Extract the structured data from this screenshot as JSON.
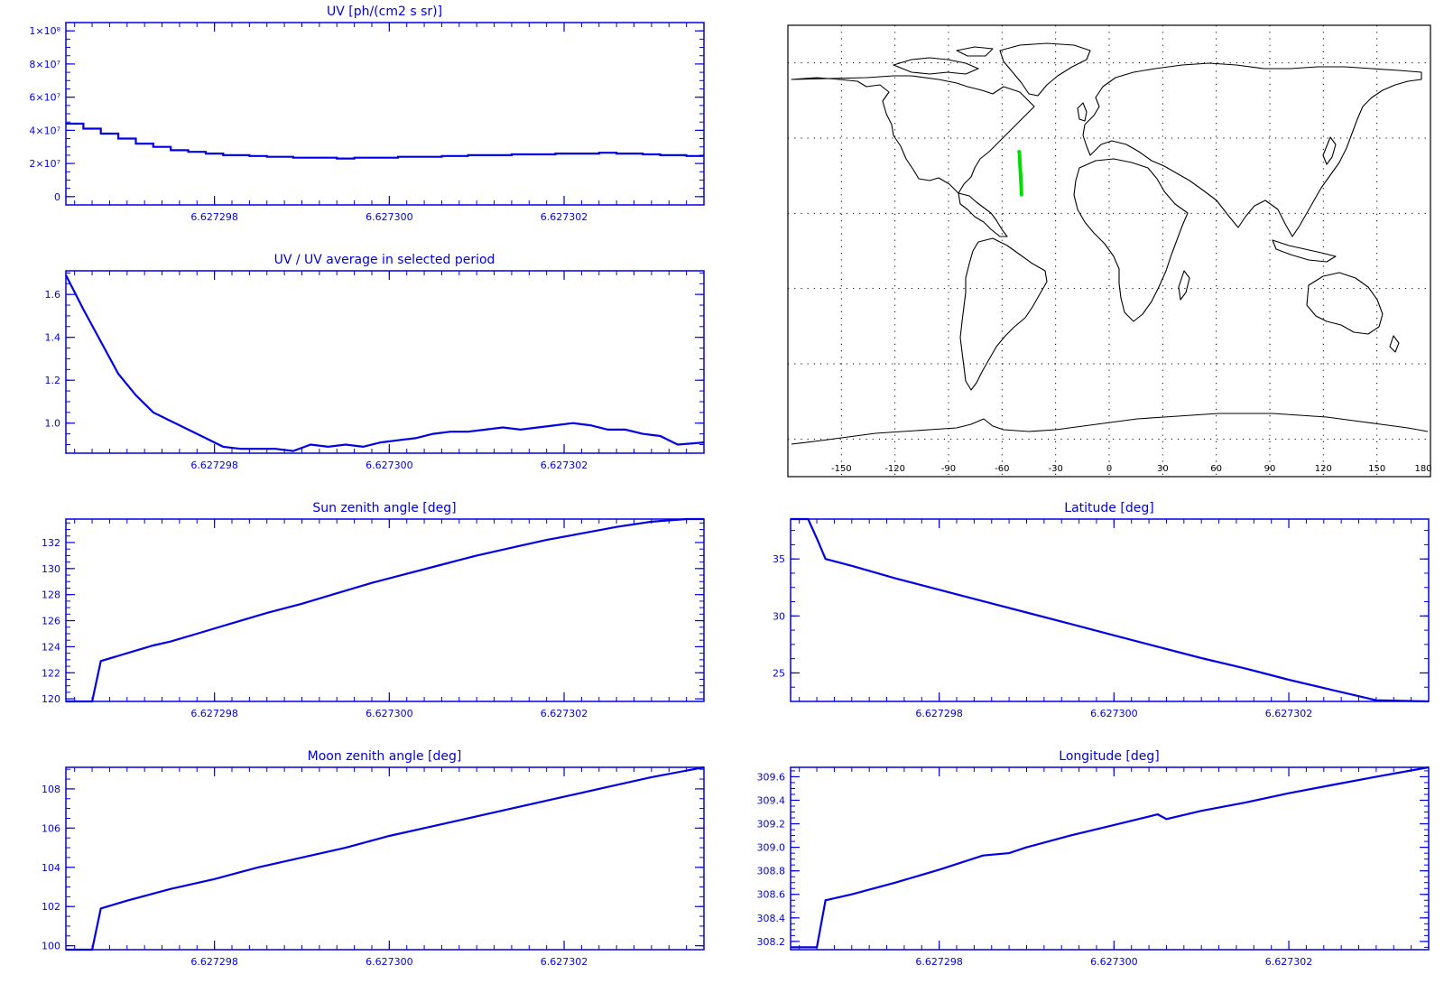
{
  "colors": {
    "plot": "#0000e6",
    "map_ink": "#000000",
    "track": "#00dd00",
    "background": "#ffffff"
  },
  "chart_data": [
    {
      "id": "uv",
      "type": "line",
      "step": true,
      "title": "UV [ph/(cm2 s sr)]",
      "xlim": [
        6.6272963,
        6.6273036
      ],
      "ylim": [
        -5000000,
        105000000
      ],
      "yticks": [
        0,
        20000000,
        40000000,
        60000000,
        80000000,
        100000000
      ],
      "ytick_labels": [
        "0",
        "2×10⁷",
        "4×10⁷",
        "6×10⁷",
        "8×10⁷",
        "1×10⁸"
      ],
      "xticks": [
        6.627298,
        6.6273,
        6.627302
      ],
      "xtick_labels": [
        "6.627298",
        "6.627300",
        "6.627302"
      ],
      "x": [
        6.6272963,
        6.6272965,
        6.6272967,
        6.6272969,
        6.6272971,
        6.6272973,
        6.6272975,
        6.6272977,
        6.6272979,
        6.6272981,
        6.6272984,
        6.6272986,
        6.6272989,
        6.6272991,
        6.6272994,
        6.6272996,
        6.6272999,
        6.6273001,
        6.6273004,
        6.6273006,
        6.6273009,
        6.6273011,
        6.6273014,
        6.6273016,
        6.6273019,
        6.6273021,
        6.6273024,
        6.6273026,
        6.6273029,
        6.6273031,
        6.6273034
      ],
      "y": [
        44000000,
        41000000,
        38000000,
        35000000,
        32000000,
        30000000,
        28000000,
        27000000,
        26000000,
        25000000,
        24500000,
        24000000,
        23500000,
        23500000,
        23000000,
        23500000,
        23500000,
        24000000,
        24000000,
        24500000,
        25000000,
        25000000,
        25500000,
        25500000,
        26000000,
        26000000,
        26500000,
        26000000,
        25500000,
        25000000,
        24500000
      ]
    },
    {
      "id": "uv_ratio",
      "type": "line",
      "title": "UV / UV average in selected period",
      "xlim": [
        6.6272963,
        6.6273036
      ],
      "ylim": [
        0.86,
        1.71
      ],
      "yticks": [
        1.0,
        1.2,
        1.4,
        1.6
      ],
      "ytick_labels": [
        "1.0",
        "1.2",
        "1.4",
        "1.6"
      ],
      "xticks": [
        6.627298,
        6.6273,
        6.627302
      ],
      "xtick_labels": [
        "6.627298",
        "6.627300",
        "6.627302"
      ],
      "x": [
        6.6272963,
        6.6272965,
        6.6272967,
        6.6272969,
        6.6272971,
        6.6272973,
        6.6272975,
        6.6272977,
        6.6272979,
        6.6272981,
        6.6272983,
        6.6272985,
        6.6272987,
        6.6272989,
        6.6272991,
        6.6272993,
        6.6272995,
        6.6272997,
        6.6272999,
        6.6273001,
        6.6273003,
        6.6273005,
        6.6273007,
        6.6273009,
        6.6273011,
        6.6273013,
        6.6273015,
        6.6273017,
        6.6273019,
        6.6273021,
        6.6273023,
        6.6273025,
        6.6273027,
        6.6273029,
        6.6273031,
        6.6273033,
        6.6273036
      ],
      "y": [
        1.69,
        1.53,
        1.38,
        1.23,
        1.13,
        1.05,
        1.01,
        0.97,
        0.93,
        0.89,
        0.88,
        0.88,
        0.88,
        0.87,
        0.9,
        0.89,
        0.9,
        0.89,
        0.91,
        0.92,
        0.93,
        0.95,
        0.96,
        0.96,
        0.97,
        0.98,
        0.97,
        0.98,
        0.99,
        1.0,
        0.99,
        0.97,
        0.97,
        0.95,
        0.94,
        0.9,
        0.91
      ]
    },
    {
      "id": "sun_zenith",
      "type": "line",
      "title": "Sun zenith angle [deg]",
      "xlim": [
        6.6272963,
        6.6273036
      ],
      "ylim": [
        119.8,
        133.8
      ],
      "yticks": [
        120,
        122,
        124,
        126,
        128,
        130,
        132
      ],
      "ytick_labels": [
        "120",
        "122",
        "124",
        "126",
        "128",
        "130",
        "132"
      ],
      "xticks": [
        6.627298,
        6.6273,
        6.627302
      ],
      "xtick_labels": [
        "6.627298",
        "6.627300",
        "6.627302"
      ],
      "x": [
        6.6272963,
        6.6272966,
        6.6272967,
        6.6272969,
        6.6272971,
        6.6272973,
        6.6272975,
        6.6272978,
        6.6272982,
        6.6272986,
        6.627299,
        6.6272994,
        6.6272998,
        6.6273002,
        6.6273006,
        6.627301,
        6.6273014,
        6.6273018,
        6.6273022,
        6.6273026,
        6.627303,
        6.6273034,
        6.6273036
      ],
      "y": [
        119.8,
        119.8,
        122.9,
        123.3,
        123.7,
        124.1,
        124.4,
        125.0,
        125.8,
        126.6,
        127.3,
        128.1,
        128.9,
        129.6,
        130.3,
        131.0,
        131.6,
        132.2,
        132.7,
        133.2,
        133.6,
        133.8,
        133.8
      ]
    },
    {
      "id": "latitude",
      "type": "line",
      "title": "Latitude [deg]",
      "xlim": [
        6.6272963,
        6.6273036
      ],
      "ylim": [
        22.5,
        38.5
      ],
      "yticks": [
        25,
        30,
        35
      ],
      "ytick_labels": [
        "25",
        "30",
        "35"
      ],
      "xticks": [
        6.627298,
        6.6273,
        6.627302
      ],
      "xtick_labels": [
        "6.627298",
        "6.627300",
        "6.627302"
      ],
      "x": [
        6.6272963,
        6.6272965,
        6.6272966,
        6.6272967,
        6.627297,
        6.6272975,
        6.627298,
        6.6272985,
        6.627299,
        6.6272995,
        6.6273,
        6.6273005,
        6.627301,
        6.6273015,
        6.627302,
        6.6273025,
        6.627303,
        6.6273036
      ],
      "y": [
        38.5,
        38.5,
        36.8,
        35.0,
        34.4,
        33.3,
        32.3,
        31.3,
        30.3,
        29.3,
        28.3,
        27.3,
        26.3,
        25.4,
        24.4,
        23.5,
        22.6,
        22.5
      ]
    },
    {
      "id": "moon_zenith",
      "type": "line",
      "title": "Moon zenith angle [deg]",
      "xlim": [
        6.6272963,
        6.6273036
      ],
      "ylim": [
        99.8,
        109.1
      ],
      "yticks": [
        100,
        102,
        104,
        106,
        108
      ],
      "ytick_labels": [
        "100",
        "102",
        "104",
        "106",
        "108"
      ],
      "xticks": [
        6.627298,
        6.6273,
        6.627302
      ],
      "xtick_labels": [
        "6.627298",
        "6.627300",
        "6.627302"
      ],
      "x": [
        6.6272963,
        6.6272966,
        6.6272967,
        6.627297,
        6.6272975,
        6.627298,
        6.6272985,
        6.627299,
        6.6272995,
        6.6273,
        6.6273005,
        6.627301,
        6.6273015,
        6.627302,
        6.6273025,
        6.627303,
        6.6273036
      ],
      "y": [
        99.8,
        99.8,
        101.9,
        102.3,
        102.9,
        103.4,
        104.0,
        104.5,
        105.0,
        105.6,
        106.1,
        106.6,
        107.1,
        107.6,
        108.1,
        108.6,
        109.1
      ]
    },
    {
      "id": "longitude",
      "type": "line",
      "title": "Longitude [deg]",
      "xlim": [
        6.6272963,
        6.6273036
      ],
      "ylim": [
        308.13,
        309.68
      ],
      "yticks": [
        308.2,
        308.4,
        308.6,
        308.8,
        309.0,
        309.2,
        309.4,
        309.6
      ],
      "ytick_labels": [
        "308.2",
        "308.4",
        "308.6",
        "308.8",
        "309.0",
        "309.2",
        "309.4",
        "309.6"
      ],
      "xticks": [
        6.627298,
        6.6273,
        6.627302
      ],
      "xtick_labels": [
        "6.627298",
        "6.627300",
        "6.627302"
      ],
      "x": [
        6.6272963,
        6.6272966,
        6.6272967,
        6.627297,
        6.6272975,
        6.627298,
        6.6272985,
        6.6272988,
        6.627299,
        6.6272995,
        6.6273,
        6.6273005,
        6.6273006,
        6.627301,
        6.6273015,
        6.627302,
        6.6273025,
        6.627303,
        6.6273036
      ],
      "y": [
        308.15,
        308.15,
        308.55,
        308.6,
        308.7,
        308.81,
        308.93,
        308.95,
        309.0,
        309.1,
        309.19,
        309.28,
        309.24,
        309.31,
        309.38,
        309.46,
        309.53,
        309.6,
        309.68
      ]
    }
  ],
  "map": {
    "type": "map",
    "lon_range": [
      -180,
      180
    ],
    "lat_range": [
      -90,
      90
    ],
    "lon_ticks": [
      -150,
      -120,
      -90,
      -60,
      -30,
      0,
      30,
      60,
      90,
      120,
      150,
      180
    ],
    "lon_tick_labels": [
      "-150",
      "-120",
      "-90",
      "-60",
      "-30",
      "0",
      "30",
      "60",
      "90",
      "120",
      "150",
      "180"
    ],
    "lat_grid": [
      -75,
      -45,
      -15,
      15,
      45,
      75
    ],
    "track": [
      [
        -50.2,
        38.5
      ],
      [
        -50.0,
        35.0
      ],
      [
        -49.6,
        30.0
      ],
      [
        -49.3,
        26.0
      ],
      [
        -49.1,
        22.5
      ]
    ],
    "track_start": [
      -50.4,
      39.5
    ]
  }
}
